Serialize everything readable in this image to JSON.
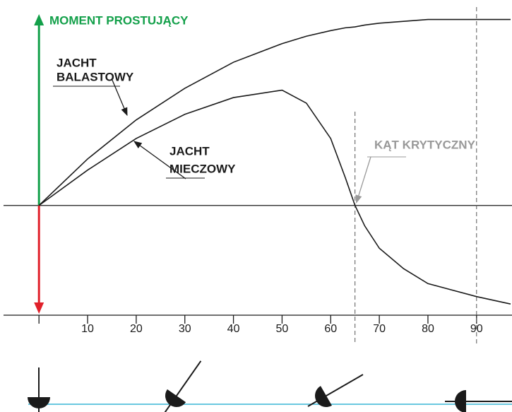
{
  "chart_data": {
    "type": "line",
    "y_label": "MOMENT PROSTUJĄCY",
    "x": [
      0,
      10,
      20,
      30,
      40,
      45,
      50,
      55,
      60,
      63,
      65,
      67,
      70,
      75,
      80,
      90,
      97
    ],
    "series": [
      {
        "name": [
          "JACHT",
          "BALASTOWY"
        ],
        "color": "#1a1a1a",
        "values": [
          0,
          25,
          46,
          63,
          77,
          82,
          87,
          91,
          94,
          95.5,
          96,
          97,
          98,
          99,
          100,
          100,
          100
        ]
      },
      {
        "name": [
          "JACHT",
          "MIECZOWY"
        ],
        "color": "#1a1a1a",
        "values": [
          0,
          19,
          36,
          49,
          58,
          60,
          62,
          55,
          36,
          15,
          0,
          -11,
          -23,
          -34,
          -42,
          -49,
          -53
        ]
      }
    ],
    "annotation": "KĄT KRYTYCZNY",
    "vlines": [
      65,
      90
    ],
    "xlim": [
      -7,
      97
    ],
    "ylim": [
      -59,
      104
    ],
    "xticks": [
      10,
      20,
      30,
      40,
      50,
      60,
      70,
      80,
      90
    ]
  }
}
